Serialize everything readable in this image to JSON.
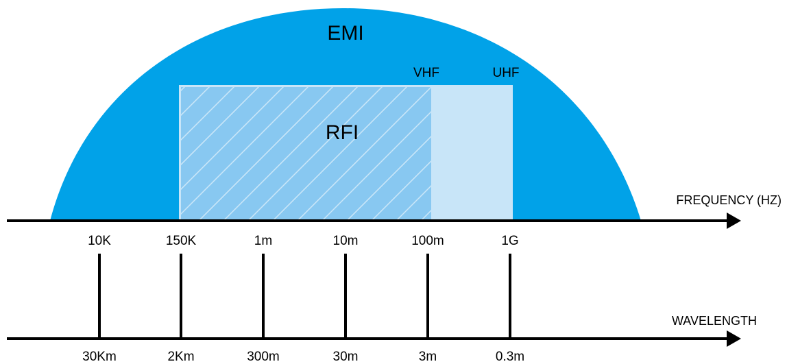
{
  "colors": {
    "emi_fill": "#01a2e8",
    "rfi_hatched_fill": "#88c8f1",
    "rfi_hatch_stroke": "#c9e6f8",
    "rfi_frame": "#c9e6f8",
    "uhf_band_fill": "#c8e5f8",
    "axis": "#000000",
    "text": "#000000"
  },
  "labels": {
    "emi": "EMI",
    "rfi": "RFI",
    "vhf": "VHF",
    "uhf": "UHF",
    "frequency_axis": "FREQUENCY (HZ)",
    "wavelength_axis": "WAVELENGTH"
  },
  "ticks": [
    {
      "frequency": "10K",
      "wavelength": "30Km"
    },
    {
      "frequency": "150K",
      "wavelength": "2Km"
    },
    {
      "frequency": "1m",
      "wavelength": "300m"
    },
    {
      "frequency": "10m",
      "wavelength": "30m"
    },
    {
      "frequency": "100m",
      "wavelength": "3m"
    },
    {
      "frequency": "1G",
      "wavelength": "0.3m"
    }
  ]
}
